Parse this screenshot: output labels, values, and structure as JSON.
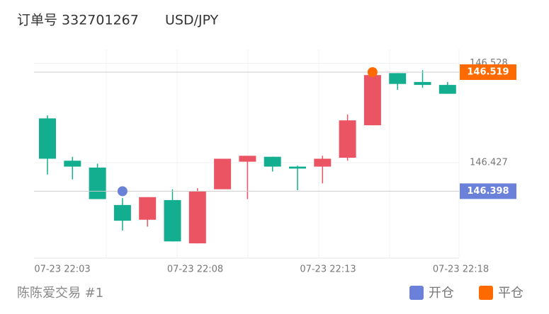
{
  "header": {
    "order_label": "订单号 332701267",
    "symbol": "USD/JPY"
  },
  "chart_data": {
    "type": "candlestick",
    "ylim": [
      146.33,
      146.542
    ],
    "yticks": [
      146.427,
      146.528
    ],
    "x_labels": [
      "07-23 22:03",
      "07-23 22:08",
      "07-23 22:13",
      "07-23 22:18"
    ],
    "colors": {
      "up": "#ea5463",
      "down": "#13ae8f"
    },
    "open": [
      146.472,
      146.429,
      146.422,
      146.384,
      146.369,
      146.389,
      146.345,
      146.4,
      146.428,
      146.433,
      146.423,
      146.423,
      146.432,
      146.465,
      146.518,
      146.509,
      146.506
    ],
    "high": [
      146.475,
      146.433,
      146.426,
      146.391,
      146.392,
      146.4,
      146.401,
      146.431,
      146.434,
      146.433,
      146.424,
      146.434,
      146.476,
      146.524,
      146.518,
      146.521,
      146.509
    ],
    "low": [
      146.415,
      146.41,
      146.39,
      146.358,
      146.362,
      146.347,
      146.345,
      146.4,
      146.39,
      146.418,
      146.399,
      146.406,
      146.429,
      146.465,
      146.501,
      146.503,
      146.497
    ],
    "close": [
      146.431,
      146.423,
      146.39,
      146.368,
      146.392,
      146.347,
      146.398,
      146.431,
      146.434,
      146.423,
      146.421,
      146.431,
      146.47,
      146.516,
      146.507,
      146.506,
      146.497
    ],
    "series": [
      {
        "name": "开仓",
        "color": "#6b80d8",
        "values": [
          null,
          null,
          null,
          146.398,
          null,
          null,
          null,
          null,
          null,
          null,
          null,
          null,
          null,
          null,
          null,
          null,
          null
        ]
      },
      {
        "name": "平仓",
        "color": "#ff6a00",
        "values": [
          null,
          null,
          null,
          null,
          null,
          null,
          null,
          null,
          null,
          null,
          null,
          null,
          null,
          146.519,
          null,
          null,
          null
        ]
      }
    ]
  },
  "footer": "陈陈爱交易 #1"
}
